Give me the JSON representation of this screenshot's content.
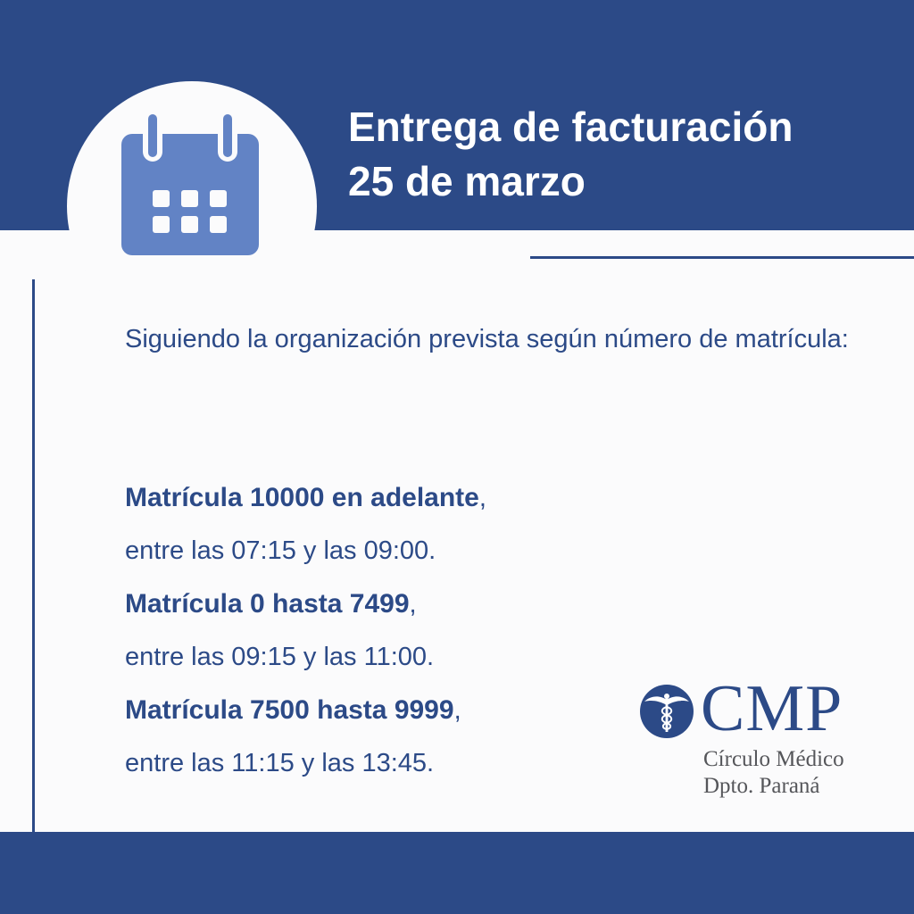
{
  "header": {
    "title_line1": "Entrega de facturación",
    "title_line2": "25 de marzo"
  },
  "icons": {
    "header_icon": "calendar-icon",
    "logo_mark": "caduceus-icon"
  },
  "colors": {
    "primary": "#2c4a87",
    "icon_fill": "#6283c5",
    "background": "#fbfbfc",
    "logo_text_gray": "#55565a"
  },
  "intro": "Siguiendo la organización prevista según número de matrícula:",
  "schedule": [
    {
      "title": "Matrícula 10000 en adelante",
      "punct": ",",
      "time": "entre las 07:15 y las 09:00."
    },
    {
      "title": "Matrícula 0 hasta 7499",
      "punct": ",",
      "time": "entre las 09:15 y las 11:00."
    },
    {
      "title": "Matrícula 7500 hasta 9999",
      "punct": ",",
      "time": "entre las 11:15 y las 13:45."
    }
  ],
  "logo": {
    "letters": "CMP",
    "line1": "Círculo Médico",
    "line2": "Dpto. Paraná"
  }
}
